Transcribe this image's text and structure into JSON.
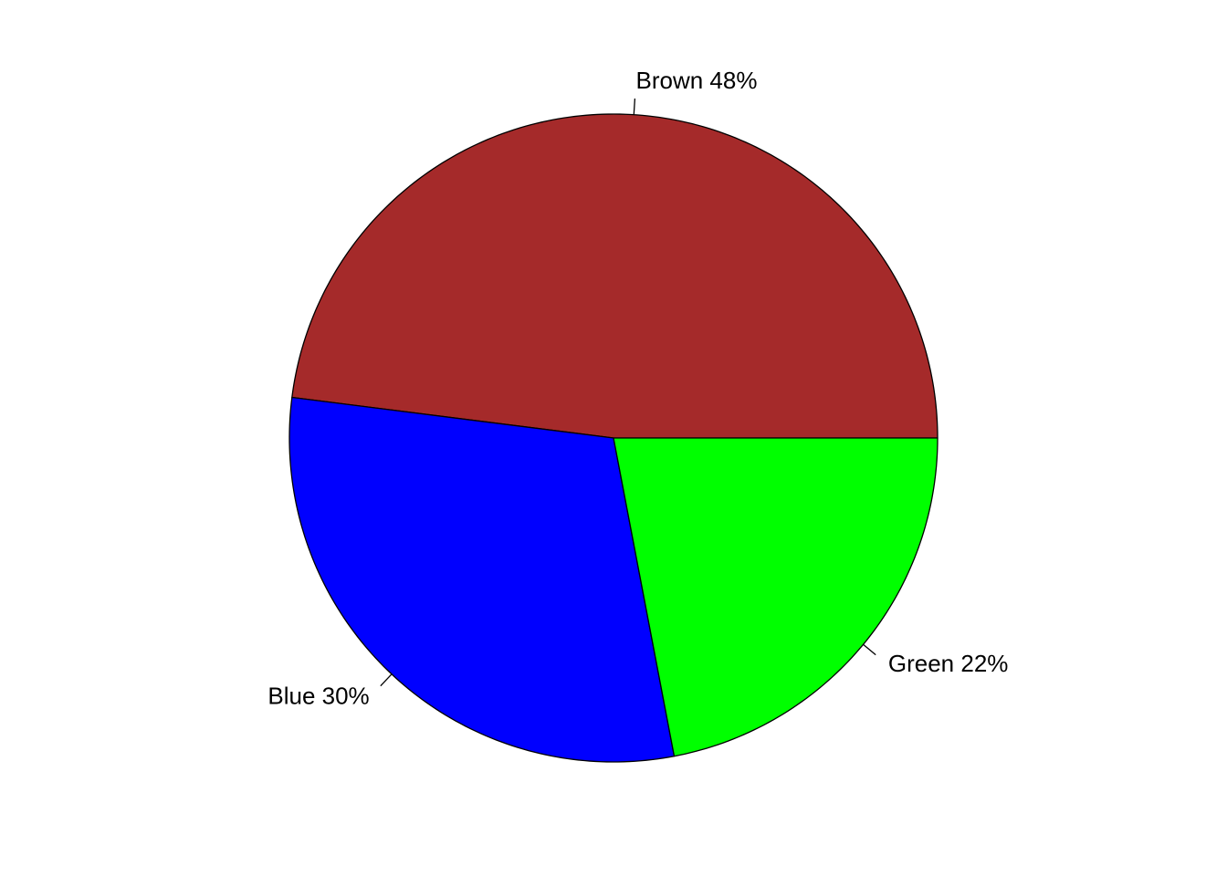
{
  "chart_data": {
    "type": "pie",
    "start_angle_deg": 0,
    "direction": "counterclockwise",
    "slices": [
      {
        "label": "Brown 48%",
        "category": "Brown",
        "value": 48,
        "color": "#A52A2A"
      },
      {
        "label": "Blue 30%",
        "category": "Blue",
        "value": 30,
        "color": "#0000FF"
      },
      {
        "label": "Green 22%",
        "category": "Green",
        "value": 22,
        "color": "#00FF00"
      }
    ]
  }
}
